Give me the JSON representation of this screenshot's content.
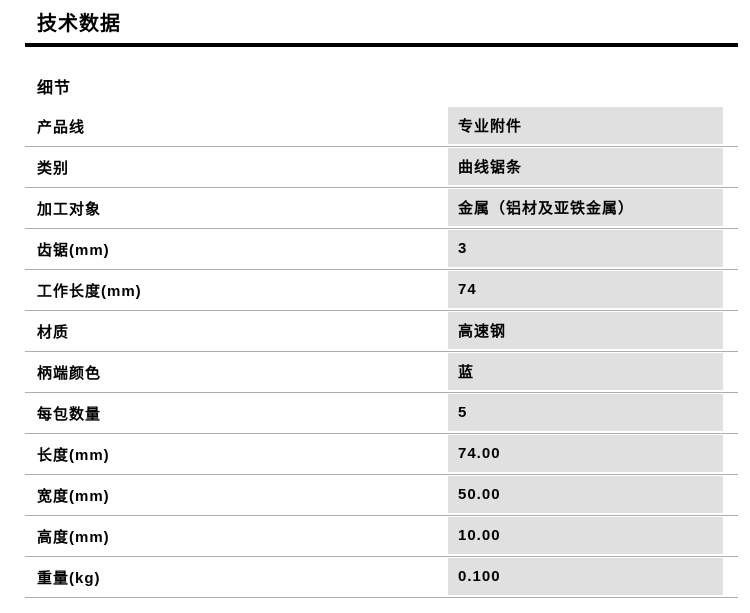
{
  "page": {
    "title": "技术数据",
    "section_title": "细节"
  },
  "table": {
    "rows": [
      {
        "label": "产品线",
        "value": "专业附件"
      },
      {
        "label": "类别",
        "value": "曲线锯条"
      },
      {
        "label": "加工对象",
        "value": "金属（铝材及亚铁金属）"
      },
      {
        "label": "齿锯(mm)",
        "value": "3"
      },
      {
        "label": "工作长度(mm)",
        "value": "74"
      },
      {
        "label": "材质",
        "value": "高速钢"
      },
      {
        "label": "柄端颜色",
        "value": "蓝"
      },
      {
        "label": "每包数量",
        "value": "5"
      },
      {
        "label": "长度(mm)",
        "value": "74.00"
      },
      {
        "label": "宽度(mm)",
        "value": "50.00"
      },
      {
        "label": "高度(mm)",
        "value": "10.00"
      },
      {
        "label": "重量(kg)",
        "value": "0.100"
      }
    ]
  },
  "colors": {
    "text": "#000000",
    "title_rule": "#000000",
    "row_divider": "#adadad",
    "value_cell_bg": "#e0e0e0"
  }
}
